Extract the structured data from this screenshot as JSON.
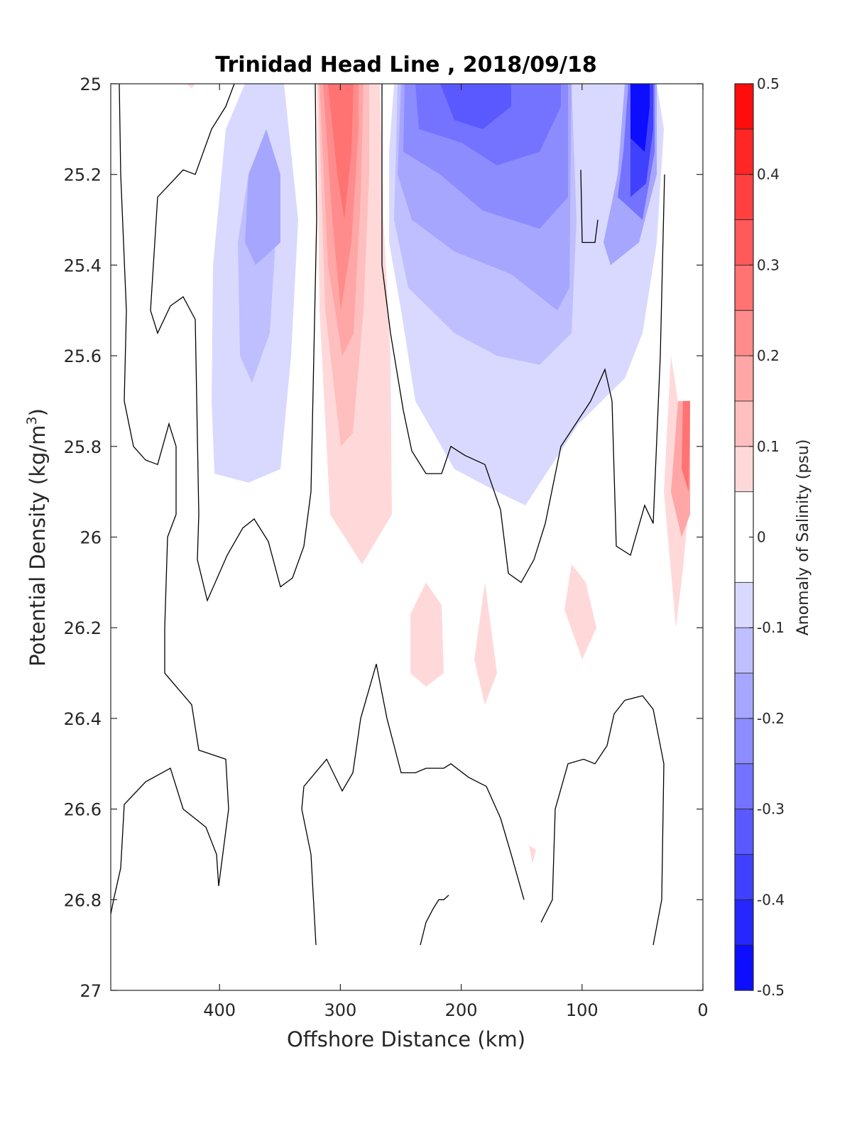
{
  "chart_data": {
    "type": "contour",
    "title": "Trinidad Head Line , 2018/09/18",
    "xlabel": "Offshore Distance (km)",
    "ylabel": "Potential Density (kg/m",
    "ylabel_sup": "3",
    "ylabel_close": ")",
    "xlim": [
      490,
      0
    ],
    "ylim": [
      25,
      27
    ],
    "x_ticks": [
      400,
      300,
      200,
      100,
      0
    ],
    "y_ticks": [
      "25",
      "25.2",
      "25.4",
      "25.6",
      "25.8",
      "26",
      "26.2",
      "26.4",
      "26.6",
      "26.8",
      "27"
    ],
    "colorbar": {
      "label": "Anomaly of Salinity (psu)",
      "range": [
        -0.5,
        0.5
      ],
      "ticks": [
        "0.5",
        "0.4",
        "0.3",
        "0.2",
        "0.1",
        "0",
        "-0.1",
        "-0.2",
        "-0.3",
        "-0.4",
        "-0.5"
      ],
      "levels": [
        -0.5,
        -0.45,
        -0.4,
        -0.35,
        -0.3,
        -0.25,
        -0.2,
        -0.15,
        -0.1,
        -0.05,
        0.05,
        0.1,
        0.15,
        0.2,
        0.25,
        0.3,
        0.35,
        0.4,
        0.45,
        0.5
      ]
    },
    "filled_regions": [
      {
        "anomaly": -0.075,
        "points": [
          [
            345,
            25.0
          ],
          [
            318,
            25.1
          ],
          [
            300,
            25.4
          ],
          [
            298,
            25.7
          ],
          [
            302,
            25.86
          ],
          [
            350,
            25.88
          ],
          [
            395,
            25.85
          ],
          [
            410,
            25.6
          ],
          [
            420,
            25.3
          ],
          [
            400,
            25.0
          ]
        ]
      },
      {
        "anomaly": -0.125,
        "points": [
          [
            350,
            25.2
          ],
          [
            335,
            25.35
          ],
          [
            338,
            25.6
          ],
          [
            355,
            25.66
          ],
          [
            380,
            25.55
          ],
          [
            390,
            25.3
          ],
          [
            375,
            25.15
          ]
        ]
      },
      {
        "anomaly": -0.175,
        "points": [
          [
            375,
            25.1
          ],
          [
            350,
            25.2
          ],
          [
            345,
            25.35
          ],
          [
            360,
            25.4
          ],
          [
            395,
            25.35
          ],
          [
            395,
            25.2
          ]
        ]
      },
      {
        "anomaly": -0.075,
        "points": [
          [
            555,
            25.0
          ],
          [
            548,
            25.15
          ],
          [
            548,
            25.35
          ],
          [
            565,
            25.5
          ],
          [
            585,
            25.7
          ],
          [
            640,
            25.85
          ],
          [
            700,
            25.9
          ],
          [
            740,
            25.93
          ],
          [
            765,
            25.87
          ],
          [
            815,
            25.75
          ],
          [
            880,
            25.65
          ],
          [
            905,
            25.55
          ],
          [
            925,
            25.35
          ],
          [
            935,
            25.1
          ],
          [
            925,
            25.0
          ]
        ]
      },
      {
        "anomaly": -0.125,
        "points": [
          [
            560,
            25.0
          ],
          [
            555,
            25.3
          ],
          [
            575,
            25.45
          ],
          [
            640,
            25.55
          ],
          [
            700,
            25.6
          ],
          [
            760,
            25.62
          ],
          [
            805,
            25.55
          ],
          [
            812,
            25.3
          ],
          [
            805,
            25.0
          ]
        ]
      },
      {
        "anomaly": -0.175,
        "points": [
          [
            565,
            25.0
          ],
          [
            560,
            25.2
          ],
          [
            580,
            25.3
          ],
          [
            640,
            25.37
          ],
          [
            720,
            25.42
          ],
          [
            785,
            25.5
          ],
          [
            802,
            25.45
          ],
          [
            805,
            25.0
          ]
        ]
      },
      {
        "anomaly": -0.225,
        "points": [
          [
            570,
            25.0
          ],
          [
            568,
            25.15
          ],
          [
            620,
            25.2
          ],
          [
            680,
            25.28
          ],
          [
            760,
            25.32
          ],
          [
            800,
            25.25
          ],
          [
            800,
            25.0
          ]
        ]
      },
      {
        "anomaly": -0.275,
        "points": [
          [
            585,
            25.0
          ],
          [
            590,
            25.1
          ],
          [
            650,
            25.13
          ],
          [
            700,
            25.18
          ],
          [
            760,
            25.15
          ],
          [
            790,
            25.05
          ],
          [
            790,
            25.0
          ]
        ]
      },
      {
        "anomaly": -0.325,
        "points": [
          [
            620,
            25.0
          ],
          [
            640,
            25.08
          ],
          [
            680,
            25.1
          ],
          [
            720,
            25.05
          ],
          [
            720,
            25.0
          ]
        ]
      },
      {
        "anomaly": -0.175,
        "points": [
          [
            880,
            25.0
          ],
          [
            870,
            25.2
          ],
          [
            850,
            25.35
          ],
          [
            860,
            25.4
          ],
          [
            900,
            25.35
          ],
          [
            925,
            25.2
          ],
          [
            925,
            25.0
          ]
        ]
      },
      {
        "anomaly": -0.275,
        "points": [
          [
            885,
            25.0
          ],
          [
            878,
            25.15
          ],
          [
            870,
            25.25
          ],
          [
            905,
            25.3
          ],
          [
            922,
            25.15
          ],
          [
            922,
            25.0
          ]
        ]
      },
      {
        "anomaly": -0.375,
        "points": [
          [
            888,
            25.0
          ],
          [
            888,
            25.25
          ],
          [
            910,
            25.22
          ],
          [
            920,
            25.1
          ],
          [
            920,
            25.0
          ]
        ]
      },
      {
        "anomaly": -0.475,
        "points": [
          [
            888,
            25.0
          ],
          [
            888,
            25.12
          ],
          [
            908,
            25.15
          ],
          [
            915,
            25.05
          ],
          [
            915,
            25.0
          ]
        ]
      },
      {
        "anomaly": 0.075,
        "points": [
          [
            446,
            25.0
          ],
          [
            450,
            25.5
          ],
          [
            465,
            25.95
          ],
          [
            510,
            26.06
          ],
          [
            552,
            25.95
          ],
          [
            550,
            25.6
          ],
          [
            540,
            25.3
          ],
          [
            535,
            25.0
          ]
        ]
      },
      {
        "anomaly": 0.125,
        "points": [
          [
            448,
            25.0
          ],
          [
            458,
            25.5
          ],
          [
            480,
            25.8
          ],
          [
            497,
            25.77
          ],
          [
            512,
            25.5
          ],
          [
            520,
            25.2
          ],
          [
            520,
            25.0
          ]
        ]
      },
      {
        "anomaly": 0.175,
        "points": [
          [
            450,
            25.0
          ],
          [
            462,
            25.4
          ],
          [
            482,
            25.6
          ],
          [
            498,
            25.55
          ],
          [
            508,
            25.25
          ],
          [
            512,
            25.0
          ]
        ]
      },
      {
        "anomaly": 0.225,
        "points": [
          [
            455,
            25.0
          ],
          [
            468,
            25.3
          ],
          [
            480,
            25.5
          ],
          [
            495,
            25.35
          ],
          [
            505,
            25.1
          ],
          [
            505,
            25.0
          ]
        ]
      },
      {
        "anomaly": 0.275,
        "points": [
          [
            462,
            25.0
          ],
          [
            475,
            25.2
          ],
          [
            485,
            25.3
          ],
          [
            495,
            25.15
          ],
          [
            498,
            25.0
          ]
        ]
      },
      {
        "anomaly": 0.075,
        "points": [
          [
            600,
            26.1
          ],
          [
            578,
            26.17
          ],
          [
            578,
            26.3
          ],
          [
            600,
            26.33
          ],
          [
            625,
            26.3
          ],
          [
            622,
            26.15
          ]
        ]
      },
      {
        "anomaly": 0.075,
        "points": [
          [
            683,
            26.1
          ],
          [
            668,
            26.27
          ],
          [
            683,
            26.37
          ],
          [
            700,
            26.3
          ]
        ]
      },
      {
        "anomaly": 0.075,
        "points": [
          [
            805,
            26.06
          ],
          [
            795,
            26.16
          ],
          [
            820,
            26.27
          ],
          [
            840,
            26.2
          ],
          [
            825,
            26.1
          ]
        ]
      },
      {
        "anomaly": 0.075,
        "points": [
          [
            945,
            25.6
          ],
          [
            935,
            25.9
          ],
          [
            952,
            26.2
          ],
          [
            962,
            26.07
          ],
          [
            972,
            25.9
          ],
          [
            972,
            25.7
          ],
          [
            955,
            25.7
          ]
        ]
      },
      {
        "anomaly": 0.175,
        "points": [
          [
            955,
            25.7
          ],
          [
            945,
            25.9
          ],
          [
            960,
            26.0
          ],
          [
            972,
            25.95
          ],
          [
            972,
            25.7
          ]
        ]
      },
      {
        "anomaly": 0.275,
        "points": [
          [
            962,
            25.7
          ],
          [
            960,
            25.85
          ],
          [
            970,
            25.9
          ],
          [
            972,
            25.7
          ]
        ]
      },
      {
        "anomaly": 0.075,
        "points": [
          [
            262,
            25.0
          ],
          [
            270,
            25.01
          ],
          [
            275,
            25.0
          ]
        ]
      },
      {
        "anomaly": 0.075,
        "points": [
          [
            745,
            26.68
          ],
          [
            750,
            26.72
          ],
          [
            755,
            26.69
          ]
        ]
      }
    ],
    "zero_contours": [
      [
        [
          168,
          25.0
        ],
        [
          170,
          25.2
        ],
        [
          178,
          25.5
        ],
        [
          175,
          25.7
        ],
        [
          188,
          25.8
        ],
        [
          205,
          25.83
        ],
        [
          222,
          25.84
        ],
        [
          238,
          25.75
        ],
        [
          248,
          25.8
        ],
        [
          248,
          25.95
        ],
        [
          236,
          26.0
        ],
        [
          232,
          26.2
        ],
        [
          232,
          26.3
        ],
        [
          270,
          26.37
        ],
        [
          280,
          26.47
        ],
        [
          318,
          26.49
        ],
        [
          322,
          26.6
        ],
        [
          308,
          26.77
        ],
        [
          305,
          26.7
        ],
        [
          290,
          26.64
        ],
        [
          258,
          26.6
        ],
        [
          240,
          26.51
        ],
        [
          205,
          26.54
        ],
        [
          175,
          26.59
        ],
        [
          170,
          26.73
        ],
        [
          160,
          26.8
        ],
        [
          155,
          26.84
        ]
      ],
      [
        [
          330,
          25.0
        ],
        [
          318,
          25.05
        ],
        [
          298,
          25.1
        ],
        [
          275,
          25.2
        ],
        [
          258,
          25.19
        ],
        [
          222,
          25.25
        ],
        [
          212,
          25.5
        ],
        [
          222,
          25.55
        ],
        [
          240,
          25.49
        ],
        [
          258,
          25.47
        ],
        [
          275,
          25.52
        ],
        [
          280,
          25.95
        ],
        [
          278,
          26.05
        ],
        [
          292,
          26.14
        ],
        [
          320,
          26.04
        ],
        [
          342,
          25.98
        ],
        [
          358,
          25.96
        ],
        [
          378,
          26.01
        ],
        [
          395,
          26.11
        ],
        [
          412,
          26.09
        ],
        [
          428,
          26.02
        ],
        [
          438,
          25.9
        ],
        [
          446,
          25.3
        ],
        [
          444,
          25.0
        ]
      ],
      [
        [
          538,
          25.0
        ],
        [
          538,
          25.4
        ],
        [
          550,
          25.55
        ],
        [
          568,
          25.72
        ],
        [
          580,
          25.81
        ],
        [
          600,
          25.86
        ],
        [
          622,
          25.86
        ],
        [
          635,
          25.8
        ],
        [
          655,
          25.82
        ],
        [
          683,
          25.84
        ],
        [
          705,
          25.94
        ],
        [
          716,
          26.08
        ],
        [
          734,
          26.1
        ],
        [
          752,
          26.05
        ],
        [
          768,
          25.97
        ],
        [
          790,
          25.8
        ],
        [
          832,
          25.7
        ],
        [
          852,
          25.63
        ],
        [
          862,
          25.7
        ],
        [
          868,
          26.02
        ],
        [
          888,
          26.04
        ],
        [
          908,
          25.93
        ],
        [
          920,
          25.97
        ],
        [
          930,
          25.6
        ],
        [
          936,
          25.2
        ]
      ],
      [
        [
          818,
          25.19
        ],
        [
          820,
          25.35
        ],
        [
          838,
          25.35
        ],
        [
          842,
          25.3
        ]
      ],
      [
        [
          445,
          26.9
        ],
        [
          438,
          26.7
        ],
        [
          425,
          26.6
        ],
        [
          428,
          26.55
        ],
        [
          460,
          26.49
        ],
        [
          482,
          26.56
        ],
        [
          497,
          26.52
        ],
        [
          508,
          26.4
        ],
        [
          530,
          26.28
        ],
        [
          545,
          26.4
        ],
        [
          565,
          26.52
        ],
        [
          585,
          26.52
        ],
        [
          600,
          26.51
        ],
        [
          625,
          26.51
        ],
        [
          635,
          26.5
        ],
        [
          660,
          26.53
        ],
        [
          685,
          26.55
        ],
        [
          705,
          26.62
        ],
        [
          720,
          26.7
        ],
        [
          738,
          26.8
        ]
      ],
      [
        [
          762,
          26.85
        ],
        [
          778,
          26.8
        ],
        [
          782,
          26.6
        ],
        [
          800,
          26.5
        ],
        [
          822,
          26.49
        ],
        [
          838,
          26.5
        ],
        [
          855,
          26.46
        ],
        [
          865,
          26.39
        ],
        [
          880,
          26.36
        ],
        [
          905,
          26.35
        ],
        [
          920,
          26.38
        ],
        [
          935,
          26.5
        ],
        [
          932,
          26.8
        ],
        [
          920,
          26.9
        ]
      ],
      [
        [
          592,
          26.9
        ],
        [
          600,
          26.85
        ],
        [
          610,
          26.82
        ],
        [
          618,
          26.8
        ],
        [
          625,
          26.8
        ],
        [
          632,
          26.79
        ]
      ]
    ]
  }
}
